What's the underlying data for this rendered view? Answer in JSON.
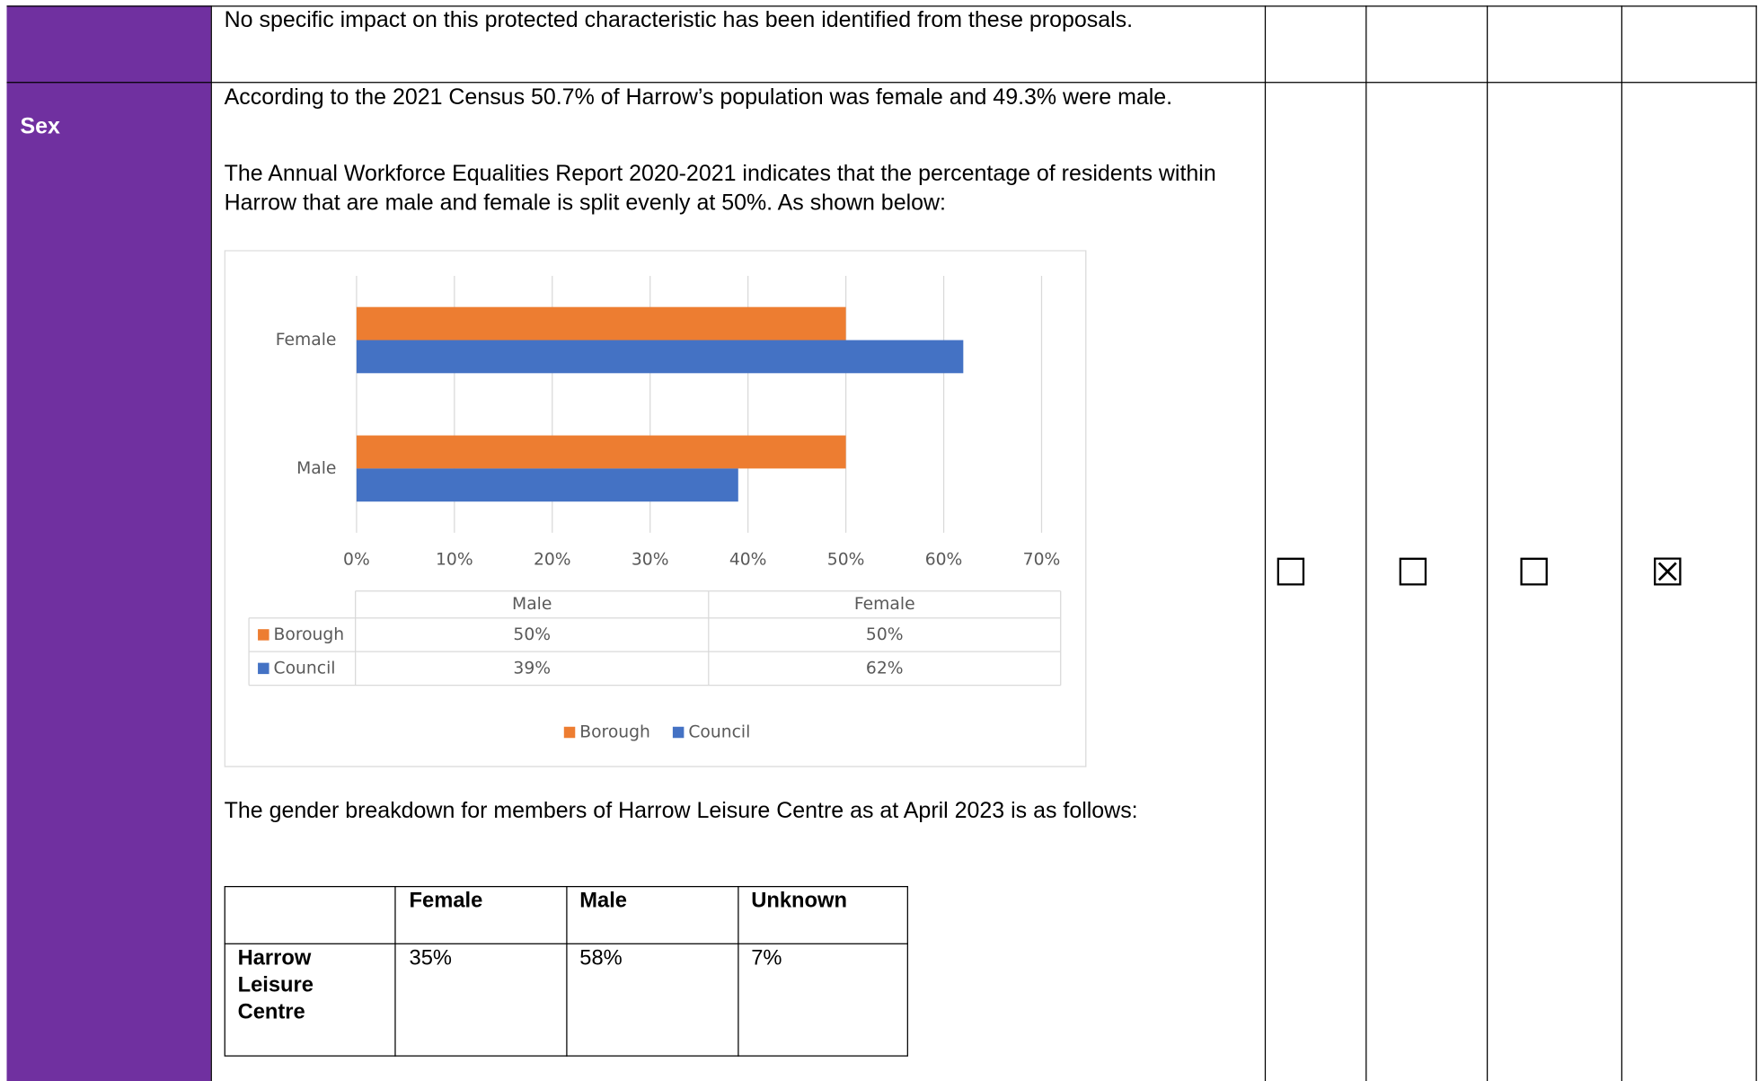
{
  "rows": [
    {
      "text": "No specific impact on this protected characteristic has been identified from these proposals."
    },
    {
      "label": "Sex",
      "paragraphs": [
        "According to the 2021 Census 50.7% of Harrow’s population was female and 49.3% were male.",
        "The Annual Workforce Equalities Report 2020-2021 indicates that the percentage of residents within Harrow that are male and female is split evenly at 50%. As shown below:",
        "The gender breakdown for members of Harrow Leisure Centre as at April 2023 is as follows:"
      ],
      "boxes": [
        "☐",
        "☐",
        "☐",
        "☒"
      ]
    }
  ],
  "chart_data": {
    "type": "bar",
    "orientation": "horizontal",
    "categories": [
      "Male",
      "Female"
    ],
    "series": [
      {
        "name": "Borough",
        "color": "#ed7d31",
        "values": [
          50,
          50
        ],
        "value_labels": [
          "50%",
          "50%"
        ]
      },
      {
        "name": "Council",
        "color": "#4472c4",
        "values": [
          39,
          62
        ],
        "value_labels": [
          "39%",
          "62%"
        ]
      }
    ],
    "xlim": [
      0,
      70
    ],
    "xticks": [
      {
        "value": 0,
        "label": "0%"
      },
      {
        "value": 10,
        "label": "10%"
      },
      {
        "value": 20,
        "label": "20%"
      },
      {
        "value": 30,
        "label": "30%"
      },
      {
        "value": 40,
        "label": "40%"
      },
      {
        "value": 50,
        "label": "50%"
      },
      {
        "value": 60,
        "label": "60%"
      },
      {
        "value": 70,
        "label": "70%"
      }
    ],
    "grid": true,
    "legend": "bottom"
  },
  "leisure_table": {
    "header": [
      "Female",
      "Male",
      "Unknown"
    ],
    "rows": [
      {
        "label": "Harrow Leisure Centre",
        "values": [
          "35%",
          "58%",
          "7%"
        ]
      }
    ]
  }
}
